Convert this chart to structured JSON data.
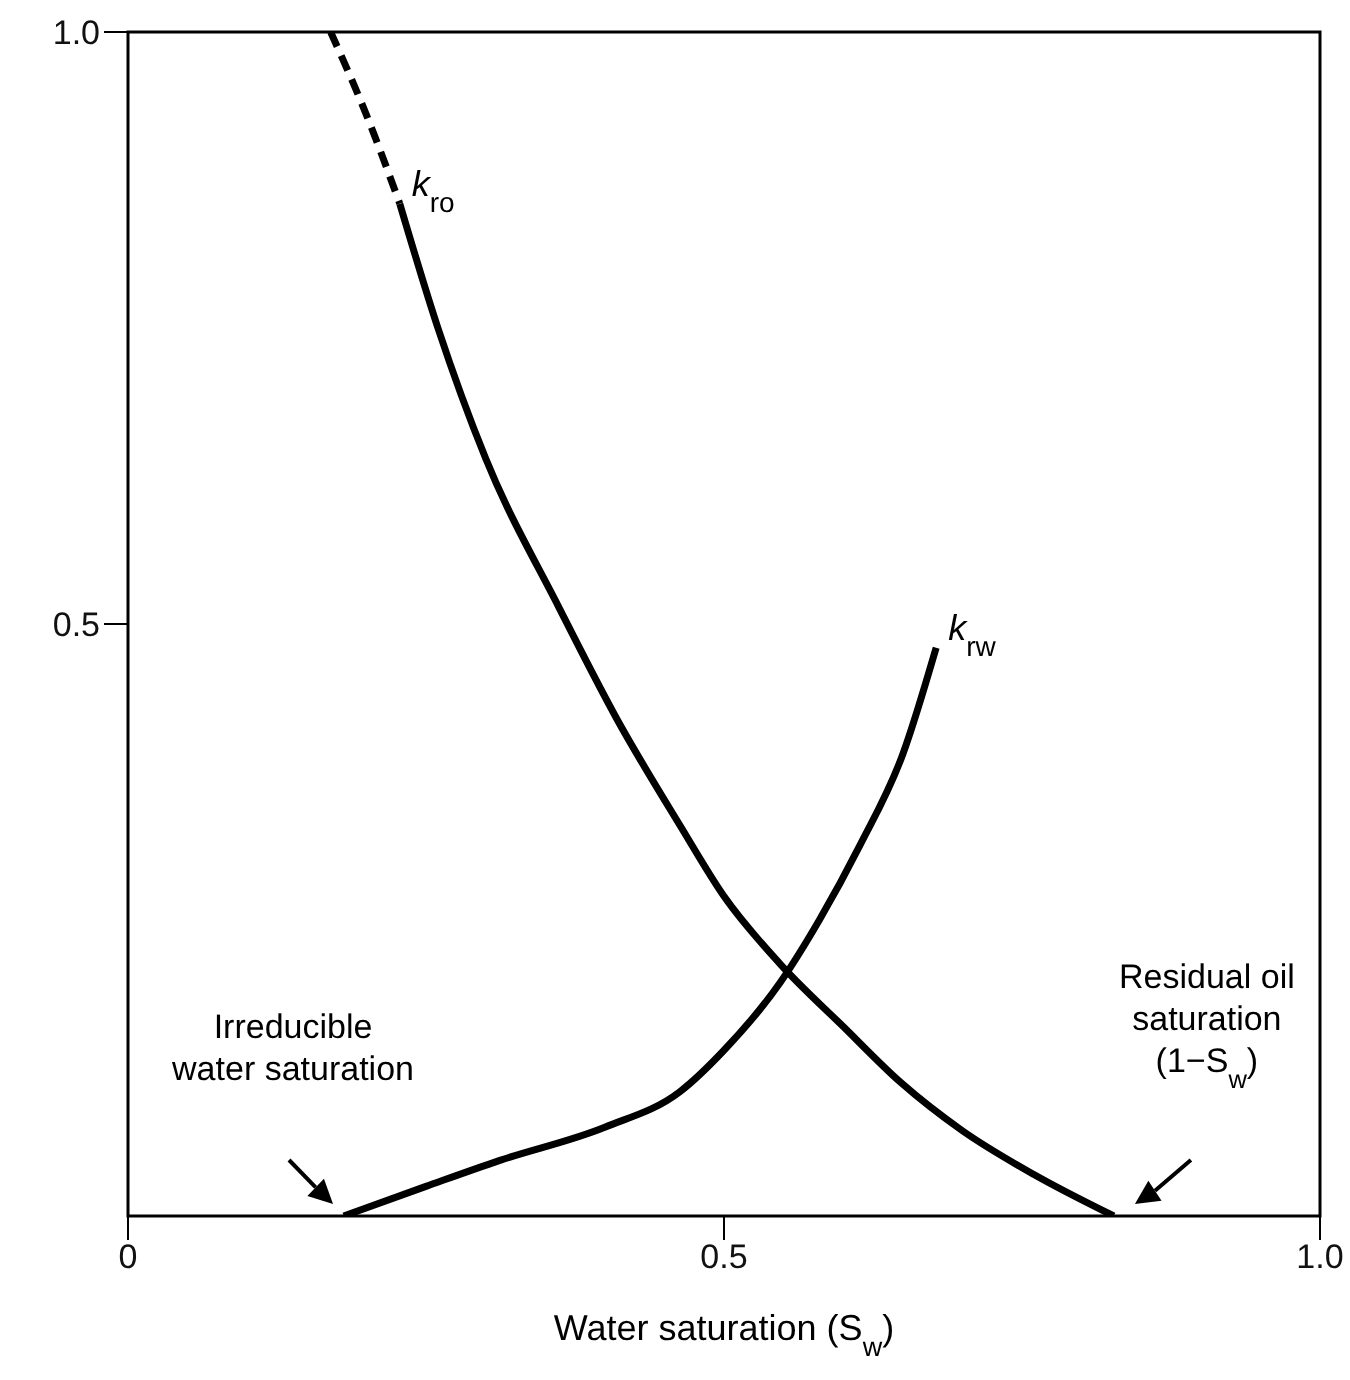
{
  "chart_data": {
    "type": "line",
    "xlabel": "Water saturation (S$_{w}$)",
    "xlim": [
      0,
      1
    ],
    "xticks": [
      0,
      0.5,
      {
        "value": 1,
        "label": "1.0"
      }
    ],
    "ylim": [
      0,
      1
    ],
    "yticks": [
      0.5,
      {
        "value": 1,
        "label": "1.0"
      }
    ],
    "grid": false,
    "marker": "none",
    "series": [
      {
        "color": "#000000",
        "line_style": "dashed",
        "x": [
          0.17,
          0.2,
          0.228
        ],
        "values": [
          1.0,
          0.93,
          0.855
        ]
      },
      {
        "name": "k$_{ro}$",
        "color": "#000000",
        "line_style": "solid",
        "x": [
          0.228,
          0.26,
          0.3,
          0.362,
          0.41,
          0.463,
          0.5,
          0.547,
          0.6,
          0.648,
          0.7,
          0.76,
          0.827
        ],
        "values": [
          0.855,
          0.75,
          0.64,
          0.513,
          0.42,
          0.33,
          0.27,
          0.213,
          0.16,
          0.113,
          0.072,
          0.035,
          0
        ]
      },
      {
        "name": "k$_{rw}$",
        "color": "#000000",
        "line_style": "solid",
        "x": [
          0.181,
          0.25,
          0.312,
          0.4,
          0.463,
          0.5,
          0.547,
          0.58,
          0.614,
          0.65,
          0.678
        ],
        "values": [
          0,
          0.025,
          0.047,
          0.075,
          0.105,
          0.14,
          0.197,
          0.25,
          0.313,
          0.39,
          0.48
        ]
      }
    ],
    "annotations": [
      "Irreducible water saturation",
      "Residual oil saturation (1−S$_{w}$)"
    ]
  }
}
